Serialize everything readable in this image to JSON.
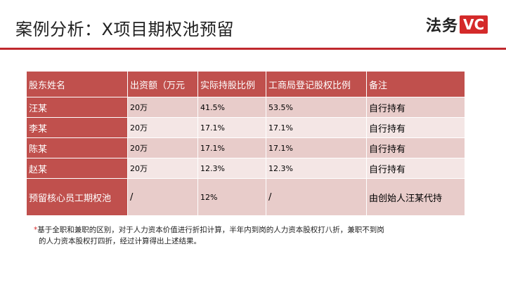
{
  "title": "案例分析：X项目期权池预留",
  "logo": {
    "text": "法务",
    "badge": "VC"
  },
  "table": {
    "headers": [
      "股东姓名",
      "出资额（万元",
      "实际持股比例",
      "工商局登记股权比例",
      "备注"
    ],
    "rows": [
      [
        "汪某",
        "20万",
        "41.5%",
        "53.5%",
        "自行持有"
      ],
      [
        "李某",
        "20万",
        "17.1%",
        "17.1%",
        "自行持有"
      ],
      [
        "陈某",
        "20万",
        "17.1%",
        "17.1%",
        "自行持有"
      ],
      [
        "赵某",
        "20万",
        "12.3%",
        "12.3%",
        "自行持有"
      ],
      [
        "预留核心员工期权池",
        "/",
        "12%",
        "/",
        "由创始人汪某代持"
      ]
    ]
  },
  "footnote": {
    "star": "*",
    "line1": "基于全职和兼职的区别，对于人力资本价值进行折扣计算，半年内到岗的人力资本股权打八折，兼职不到岗",
    "line2": "的人力资本股权打四折，经过计算得出上述结果。"
  },
  "colors": {
    "accent": "#c0282d",
    "header_bg": "#c0504d",
    "row_odd": "#e8ccca",
    "row_even": "#f4e6e5"
  }
}
